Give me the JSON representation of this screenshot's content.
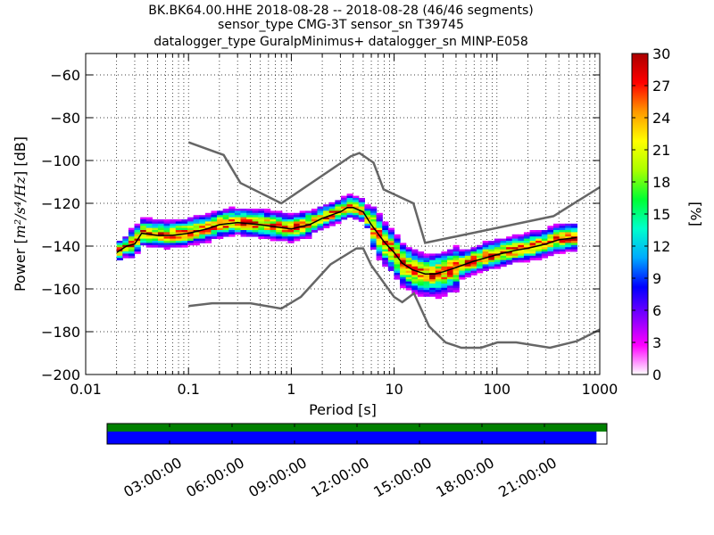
{
  "title_lines": [
    "BK.BK64.00.HHE   2018-08-28 -- 2018-08-28  (46/46 segments)",
    "sensor_type CMG-3T sensor_sn T39745",
    "datalogger_type GuralpMinimus+ datalogger_sn MINP-E058"
  ],
  "chart_data": {
    "type": "heatmap",
    "xlabel": "Period [s]",
    "ylabel": "Power [$m^2/s^4/Hz$] [dB]",
    "ylabel_parts": {
      "prefix": "Power [",
      "math": "m²/s⁴/Hz",
      "suffix": "] [dB]"
    },
    "xscale": "log",
    "xlim": [
      0.01,
      1000
    ],
    "ylim": [
      -200,
      -50
    ],
    "xticks": [
      0.01,
      0.1,
      1,
      10,
      100,
      1000
    ],
    "xtick_labels": [
      "0.01",
      "0.1",
      "1",
      "10",
      "100",
      "1000"
    ],
    "yticks": [
      -200,
      -180,
      -160,
      -140,
      -120,
      -100,
      -80,
      -60
    ],
    "ytick_labels": [
      "−200",
      "−180",
      "−160",
      "−140",
      "−120",
      "−100",
      "−80",
      "−60"
    ],
    "grid": "dotted",
    "colorbar": {
      "label": "[%]",
      "range": [
        0,
        30
      ],
      "ticks": [
        0,
        3,
        6,
        9,
        12,
        15,
        18,
        21,
        24,
        27,
        30
      ],
      "tick_labels": [
        "0",
        "3",
        "6",
        "9",
        "12",
        "15",
        "18",
        "21",
        "24",
        "27",
        "30"
      ],
      "colors": [
        "#ffffff",
        "#ff00ff",
        "#7f00ff",
        "#0000ff",
        "#00aaff",
        "#00ffcc",
        "#00ff33",
        "#aaff00",
        "#ffff00",
        "#ff9900",
        "#ff0000",
        "#aa0000"
      ]
    },
    "median": {
      "x": [
        0.02,
        0.025,
        0.03,
        0.035,
        0.05,
        0.07,
        0.1,
        0.15,
        0.2,
        0.3,
        0.5,
        0.7,
        1,
        1.5,
        2,
        3,
        3.5,
        4,
        5,
        6,
        8,
        10,
        12,
        15,
        20,
        25,
        30,
        40,
        60,
        100,
        150,
        200,
        300,
        400,
        600
      ],
      "y": [
        -143,
        -140,
        -139,
        -134,
        -135,
        -135,
        -134,
        -132,
        -130,
        -129,
        -130,
        -131,
        -132,
        -130,
        -127,
        -124,
        -122,
        -122,
        -124,
        -130,
        -138,
        -143,
        -148,
        -151,
        -153,
        -153,
        -152,
        -150,
        -147,
        -144,
        -142,
        -141,
        -139,
        -137,
        -136
      ]
    },
    "nlnm": {
      "x": [
        0.1,
        0.17,
        0.4,
        0.8,
        1.24,
        2.4,
        4.3,
        5,
        6,
        10,
        12,
        15.6,
        21.9,
        31.6,
        45,
        70,
        101,
        154,
        328,
        600,
        1000
      ],
      "y": [
        -168.0,
        -166.7,
        -166.7,
        -169.2,
        -163.7,
        -148.6,
        -141.1,
        -141.1,
        -149.0,
        -163.8,
        -166.2,
        -162.1,
        -177.5,
        -185.0,
        -187.5,
        -187.5,
        -185.0,
        -185.0,
        -187.5,
        -184.4,
        -179.0
      ]
    },
    "nhnm": {
      "x": [
        0.1,
        0.22,
        0.32,
        0.8,
        3.8,
        4.6,
        6.3,
        7.9,
        15.4,
        20,
        354.8,
        1000
      ],
      "y": [
        -91.5,
        -97.4,
        -110.5,
        -120.0,
        -98.0,
        -96.5,
        -101.0,
        -113.5,
        -120.0,
        -138.5,
        -126.0,
        -112.5
      ]
    },
    "availability": {
      "time_ticks": [
        "03:00:00",
        "06:00:00",
        "09:00:00",
        "12:00:00",
        "15:00:00",
        "18:00:00",
        "21:00:00"
      ],
      "tick_hours": [
        3,
        6,
        9,
        12,
        15,
        18,
        21
      ],
      "range_hours": [
        0,
        24
      ],
      "data_coverage_hours": [
        0,
        24
      ],
      "psd_coverage_hours": [
        0,
        23.5
      ],
      "data_color": "#008000",
      "psd_color": "#0000ff"
    }
  }
}
